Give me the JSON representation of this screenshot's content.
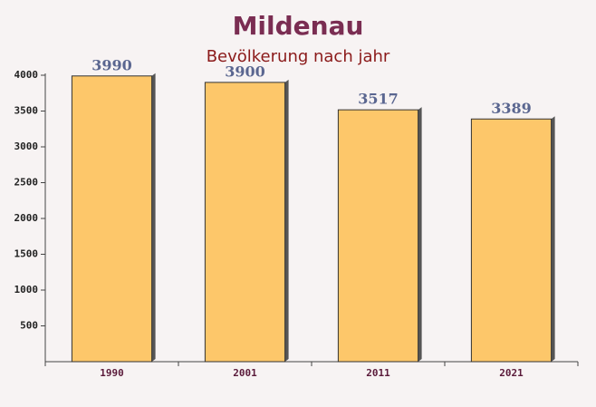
{
  "chart_data": {
    "type": "bar",
    "title": "Mildenau",
    "subtitle": "Bevölkerung nach jahr",
    "categories": [
      "1990",
      "2001",
      "2011",
      "2021"
    ],
    "values": [
      3990,
      3900,
      3517,
      3389
    ],
    "color": "#fdc76a",
    "ylim": [
      0,
      4000
    ],
    "yticks": [
      500,
      1000,
      1500,
      2000,
      2500,
      3000,
      3500,
      4000
    ]
  }
}
